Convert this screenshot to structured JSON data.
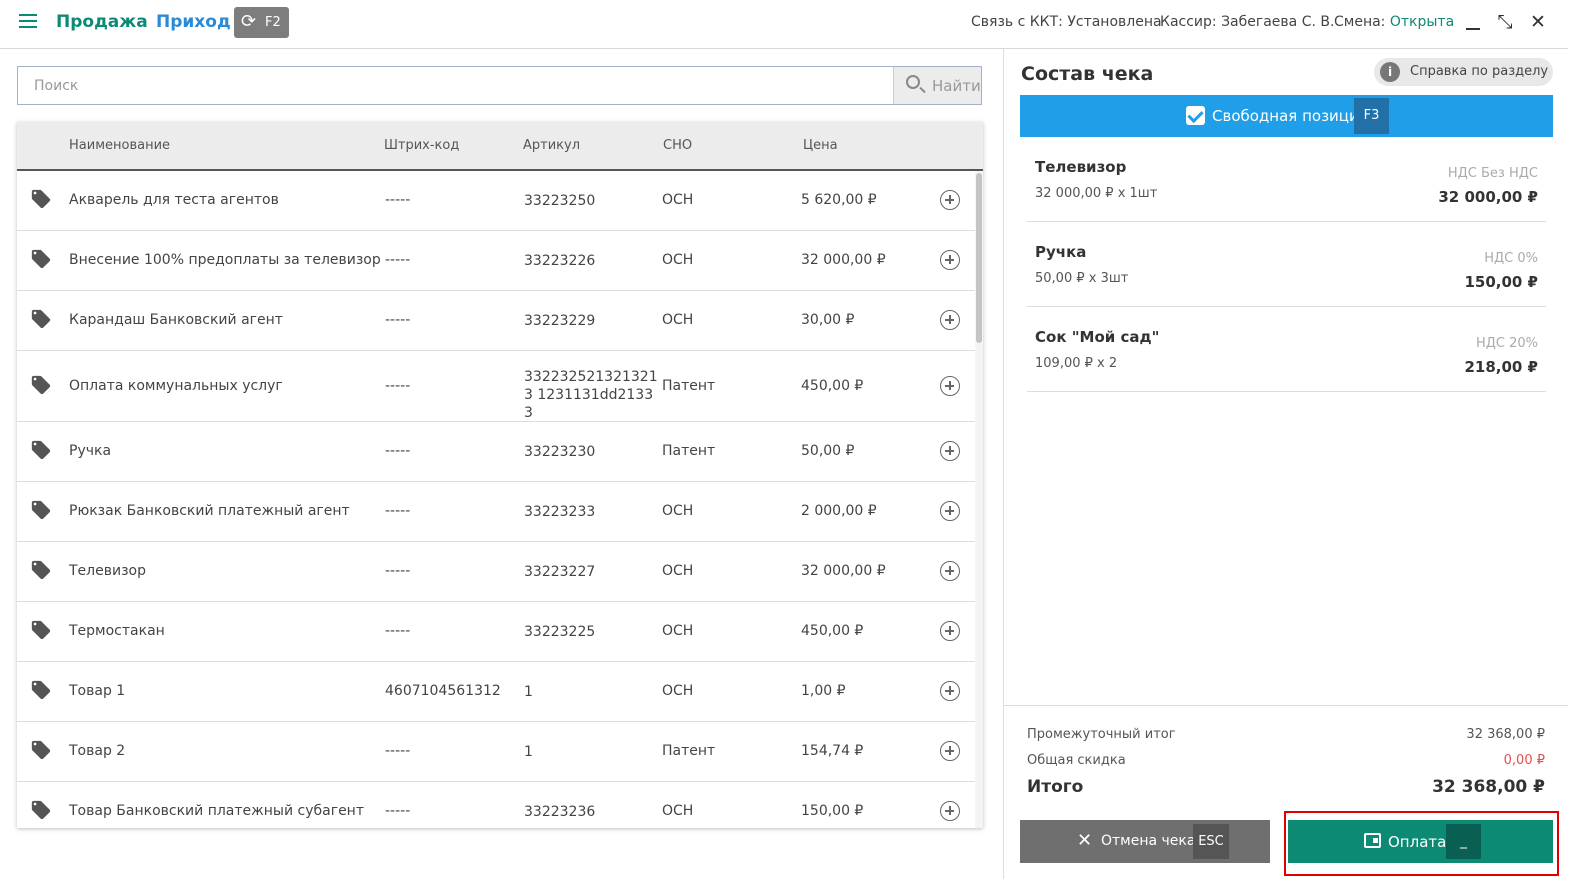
{
  "header": {
    "mode_sale": "Продажа",
    "mode_income": "Приход",
    "switch_key": "F2",
    "kkt_status": "Связь с ККТ: Установлена",
    "cashier": "Кассир: Забегаева С. В.",
    "shift_label": "Смена:",
    "shift_value": "Открыта"
  },
  "search": {
    "placeholder": "Поиск",
    "button_label": "Найти"
  },
  "table": {
    "columns": [
      "Наименование",
      "Штрих-код",
      "Артикул",
      "СНО",
      "Цена"
    ],
    "rows": [
      {
        "name": "Акварель для теста агентов",
        "barcode": "-----",
        "article": "33223250",
        "sno": "ОСН",
        "price": "5 620,00 ₽"
      },
      {
        "name": "Внесение 100% предоплаты за телевизор",
        "barcode": "-----",
        "article": "33223226",
        "sno": "ОСН",
        "price": "32 000,00 ₽"
      },
      {
        "name": "Карандаш Банковский агент",
        "barcode": "-----",
        "article": "33223229",
        "sno": "ОСН",
        "price": "30,00 ₽"
      },
      {
        "name": "Оплата коммунальных услуг",
        "barcode": "-----",
        "article": "3322325213213213 1231131dd21333",
        "sno": "Патент",
        "price": "450,00 ₽"
      },
      {
        "name": "Ручка",
        "barcode": "-----",
        "article": "33223230",
        "sno": "Патент",
        "price": "50,00 ₽"
      },
      {
        "name": "Рюкзак Банковский платежный агент",
        "barcode": "-----",
        "article": "33223233",
        "sno": "ОСН",
        "price": "2 000,00 ₽"
      },
      {
        "name": "Телевизор",
        "barcode": "-----",
        "article": "33223227",
        "sno": "ОСН",
        "price": "32 000,00 ₽"
      },
      {
        "name": "Термостакан",
        "barcode": "-----",
        "article": "33223225",
        "sno": "ОСН",
        "price": "450,00 ₽"
      },
      {
        "name": "Товар 1",
        "barcode": "4607104561312",
        "article": "1",
        "sno": "ОСН",
        "price": "1,00 ₽"
      },
      {
        "name": "Товар 2",
        "barcode": "-----",
        "article": "1",
        "sno": "Патент",
        "price": "154,74 ₽"
      },
      {
        "name": "Товар Банковский платежный субагент",
        "barcode": "-----",
        "article": "33223236",
        "sno": "ОСН",
        "price": "150,00 ₽"
      }
    ]
  },
  "receipt": {
    "title": "Состав чека",
    "help_label": "Справка по разделу",
    "free_position_label": "Свободная позиция",
    "free_position_key": "F3",
    "items": [
      {
        "name": "Телевизор",
        "qty": "32 000,00 ₽ x 1шт",
        "vat": "НДС Без НДС",
        "sum": "32 000,00 ₽"
      },
      {
        "name": "Ручка",
        "qty": "50,00 ₽ x 3шт",
        "vat": "НДС 0%",
        "sum": "150,00 ₽"
      },
      {
        "name": "Сок \"Мой сад\"",
        "qty": "109,00 ₽ x 2",
        "vat": "НДС 20%",
        "sum": "218,00 ₽"
      }
    ],
    "subtotal_label": "Промежуточный итог",
    "subtotal_value": "32 368,00 ₽",
    "discount_label": "Общая скидка",
    "discount_value": "0,00 ₽",
    "total_label": "Итого",
    "total_value": "32 368,00 ₽",
    "cancel_label": "Отмена чека",
    "cancel_key": "ESC",
    "pay_label": "Оплата",
    "pay_key": "_"
  },
  "icons": {
    "menu": "menu-icon",
    "sync": "sync-icon",
    "minimize": "minimize-icon",
    "collapse": "collapse-icon",
    "close": "close-icon",
    "search": "search-icon",
    "tag": "tag-icon",
    "add": "add-circle-icon",
    "info": "info-icon",
    "checkbox": "checkbox-icon",
    "wallet": "wallet-icon"
  },
  "colors": {
    "accent_green": "#0d8a74",
    "accent_blue": "#209fe8",
    "income_blue": "#2a8ad6",
    "discount_red": "#e05050",
    "highlight_red": "#e00000"
  }
}
